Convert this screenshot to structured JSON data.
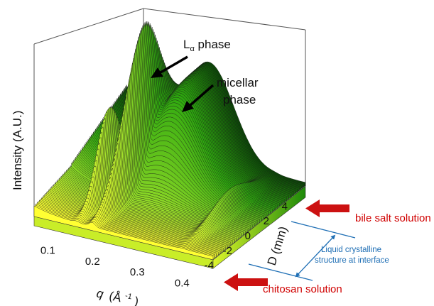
{
  "chart_data": {
    "type": "waterfall-3d",
    "ylabel": "Intensity (A.U.)",
    "xlabel_symbol": "q",
    "xlabel_unit": "(Å",
    "xlabel_exp": "-1",
    "xlabel_close": ")",
    "x_ticks": [
      "0.1",
      "0.2",
      "0.3",
      "0.4"
    ],
    "zlabel": "D (mm)",
    "z_ticks": [
      "4",
      "2",
      "0",
      "-2",
      "-4"
    ],
    "x_range": [
      0.07,
      0.47
    ],
    "z_range": [
      -5,
      5
    ],
    "grid": false,
    "colormap": [
      "#ffff33",
      "#9be02a",
      "#2ea80f",
      "#0b4a06"
    ],
    "peaks": [
      {
        "label_main": "L",
        "label_sub": "α",
        "label_rest": " phase",
        "q": 0.2,
        "D": 0
      },
      {
        "label_main": "micellar",
        "label_second_line": "phase",
        "q": 0.27,
        "D": 2.5
      }
    ],
    "annotations": {
      "top": "bile salt solution",
      "bottom": "chitosan solution",
      "interface_line1": "Liquid crystalline",
      "interface_line2": "structure at interface"
    },
    "colors": {
      "arrow_red": "#cc1111",
      "interface_blue": "#1f6fb5",
      "label_red": "#d00000"
    }
  }
}
